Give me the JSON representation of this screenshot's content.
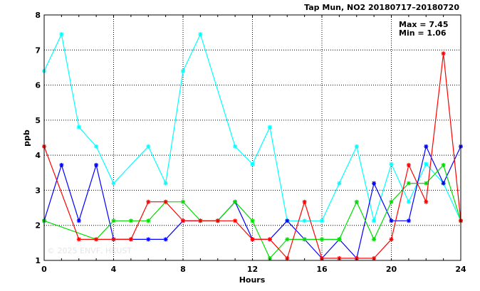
{
  "chart_data": {
    "type": "line",
    "title": "Tap Mun, NO2 20180717–20180720",
    "xlabel": "Hours",
    "ylabel": "ppb",
    "xlim": [
      0,
      24
    ],
    "ylim": [
      1,
      8
    ],
    "xticks": [
      "0",
      "4",
      "8",
      "12",
      "16",
      "20",
      "24"
    ],
    "yticks": [
      "1",
      "2",
      "3",
      "4",
      "5",
      "6",
      "7",
      "8"
    ],
    "grid": true,
    "stats": {
      "max": "Max = 7.45",
      "min": "Min = 1.06"
    },
    "watermark": "© 2025 ENVF, HKUST",
    "x": [
      0,
      1,
      2,
      3,
      4,
      5,
      6,
      7,
      8,
      9,
      10,
      11,
      12,
      13,
      14,
      15,
      16,
      17,
      18,
      19,
      20,
      21,
      22,
      23,
      24
    ],
    "series": [
      {
        "color": "#00ffff",
        "values": [
          6.4,
          7.45,
          4.8,
          4.25,
          3.2,
          null,
          4.25,
          3.2,
          6.4,
          7.45,
          null,
          4.25,
          3.75,
          4.8,
          2.13,
          2.13,
          2.13,
          3.2,
          4.25,
          2.13,
          3.75,
          2.67,
          3.75,
          3.2,
          2.13
        ]
      },
      {
        "color": "#0000ff",
        "values": [
          2.13,
          3.72,
          2.13,
          3.72,
          1.6,
          1.6,
          1.6,
          1.6,
          2.13,
          2.13,
          2.13,
          2.67,
          1.6,
          1.6,
          2.13,
          1.6,
          1.06,
          1.6,
          1.06,
          3.2,
          2.13,
          2.13,
          4.25,
          3.2,
          4.25
        ]
      },
      {
        "color": "#00dd00",
        "values": [
          2.13,
          null,
          null,
          1.6,
          2.13,
          2.13,
          2.13,
          2.67,
          2.67,
          2.13,
          2.13,
          2.67,
          2.13,
          1.06,
          1.6,
          1.6,
          1.6,
          1.6,
          2.67,
          1.6,
          2.67,
          3.2,
          3.2,
          3.72,
          2.13
        ]
      },
      {
        "color": "#ff0000",
        "values": [
          4.25,
          null,
          1.6,
          1.6,
          1.6,
          1.6,
          2.67,
          2.67,
          2.13,
          2.13,
          2.13,
          2.13,
          1.6,
          1.6,
          1.06,
          2.67,
          1.06,
          1.06,
          1.06,
          1.06,
          1.6,
          3.72,
          2.67,
          6.9,
          2.13
        ]
      }
    ]
  }
}
